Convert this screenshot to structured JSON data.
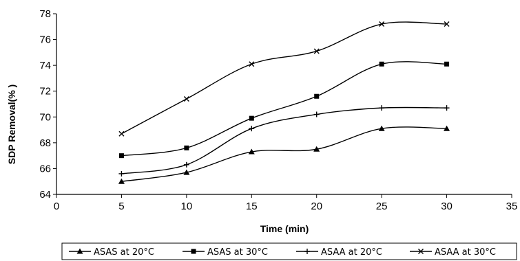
{
  "chart_data": {
    "type": "line",
    "title": "",
    "xlabel": "Time (min)",
    "ylabel": "SDP  Removal(% )",
    "xlim": [
      0,
      35
    ],
    "ylim": [
      64,
      78
    ],
    "x_ticks": [
      0,
      5,
      10,
      15,
      20,
      25,
      30,
      35
    ],
    "y_ticks": [
      64,
      66,
      68,
      70,
      72,
      74,
      76,
      78
    ],
    "x_tick_labels": [
      "0",
      "5",
      "10",
      "15",
      "20",
      "25",
      "30",
      "35"
    ],
    "y_tick_labels": [
      "64",
      "66",
      "68",
      "70",
      "72",
      "74",
      "76",
      "78"
    ],
    "grid": false,
    "legend_position": "bottom",
    "x": [
      5,
      10,
      15,
      20,
      25,
      30
    ],
    "series": [
      {
        "name": "ASAS at 20°C",
        "marker": "triangle",
        "values": [
          65.0,
          65.7,
          67.3,
          67.5,
          69.1,
          69.1
        ]
      },
      {
        "name": "ASAS at 30°C",
        "marker": "square",
        "values": [
          67.0,
          67.6,
          69.9,
          71.6,
          74.1,
          74.1
        ]
      },
      {
        "name": "ASAA at 20°C",
        "marker": "plus",
        "values": [
          65.6,
          66.3,
          69.1,
          70.2,
          70.7,
          70.7
        ]
      },
      {
        "name": "ASAA at 30°C",
        "marker": "cross",
        "values": [
          68.7,
          71.4,
          74.1,
          75.1,
          77.2,
          77.2
        ]
      }
    ]
  }
}
